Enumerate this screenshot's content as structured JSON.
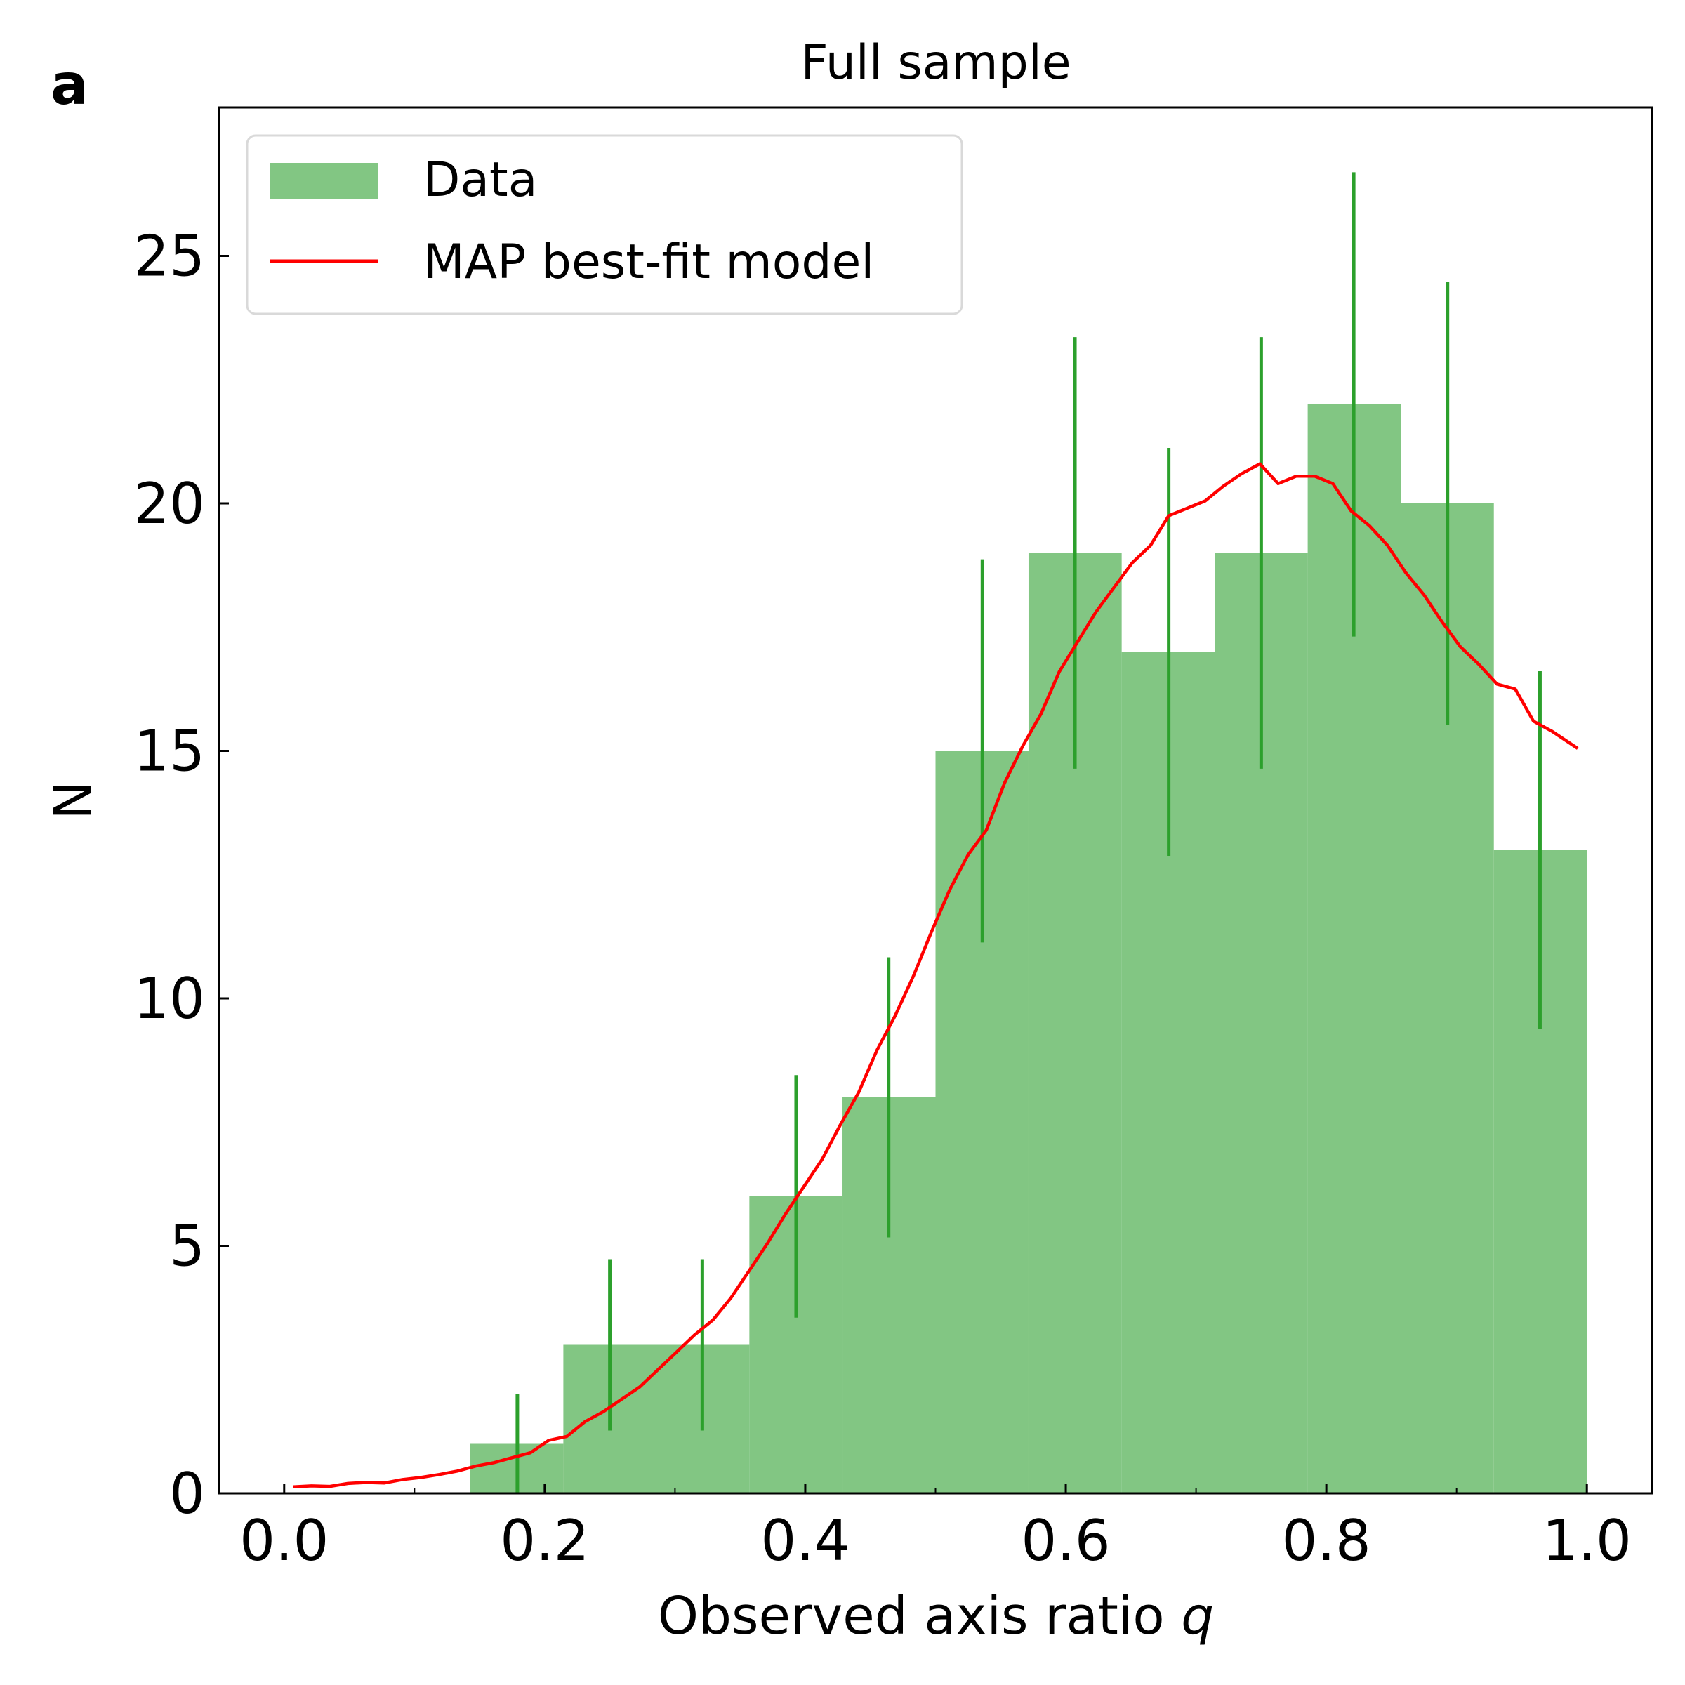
{
  "panel_label": "a",
  "chart_data": {
    "type": "bar",
    "title": "Full sample",
    "xlabel": "Observed axis ratio",
    "xlabel_var": "q",
    "ylabel": "N",
    "xlim": [
      -0.05,
      1.05
    ],
    "ylim": [
      0,
      28
    ],
    "xticks": [
      0.0,
      0.2,
      0.4,
      0.6,
      0.8,
      1.0
    ],
    "xtick_labels": [
      "0.0",
      "0.2",
      "0.4",
      "0.6",
      "0.8",
      "1.0"
    ],
    "yticks": [
      0,
      5,
      10,
      15,
      20,
      25
    ],
    "ytick_labels": [
      "0",
      "5",
      "10",
      "15",
      "20",
      "25"
    ],
    "grid": false,
    "legend_position": "top-left",
    "series": [
      {
        "name": "Data",
        "kind": "histogram",
        "color": "#82c683",
        "bin_edges": [
          0.1429,
          0.2143,
          0.2857,
          0.3571,
          0.4286,
          0.5,
          0.5714,
          0.6429,
          0.7143,
          0.7857,
          0.8571,
          0.9286,
          1.0
        ],
        "values": [
          1,
          3,
          3,
          6,
          8,
          15,
          19,
          17,
          19,
          22,
          20,
          13
        ],
        "error_color": "#2ca02c",
        "errors": [
          {
            "x": 0.179,
            "low": 0.0,
            "high": 2.0
          },
          {
            "x": 0.25,
            "low": 1.27,
            "high": 4.73
          },
          {
            "x": 0.321,
            "low": 1.27,
            "high": 4.73
          },
          {
            "x": 0.393,
            "low": 3.55,
            "high": 8.45
          },
          {
            "x": 0.464,
            "low": 5.17,
            "high": 10.83
          },
          {
            "x": 0.536,
            "low": 11.13,
            "high": 18.87
          },
          {
            "x": 0.607,
            "low": 14.64,
            "high": 23.36
          },
          {
            "x": 0.679,
            "low": 12.88,
            "high": 21.12
          },
          {
            "x": 0.75,
            "low": 14.64,
            "high": 23.36
          },
          {
            "x": 0.821,
            "low": 17.31,
            "high": 26.69
          },
          {
            "x": 0.893,
            "low": 15.53,
            "high": 24.47
          },
          {
            "x": 0.964,
            "low": 9.39,
            "high": 16.61
          }
        ]
      },
      {
        "name": "MAP best-fit model",
        "kind": "line",
        "color": "#ff0000",
        "x": [
          0.007,
          0.021,
          0.035,
          0.049,
          0.063,
          0.077,
          0.091,
          0.105,
          0.119,
          0.133,
          0.147,
          0.161,
          0.175,
          0.189,
          0.203,
          0.217,
          0.231,
          0.245,
          0.259,
          0.273,
          0.287,
          0.301,
          0.315,
          0.329,
          0.343,
          0.357,
          0.371,
          0.385,
          0.399,
          0.413,
          0.427,
          0.441,
          0.455,
          0.469,
          0.483,
          0.497,
          0.511,
          0.525,
          0.539,
          0.553,
          0.567,
          0.581,
          0.595,
          0.609,
          0.623,
          0.637,
          0.651,
          0.665,
          0.679,
          0.693,
          0.707,
          0.721,
          0.735,
          0.749,
          0.763,
          0.777,
          0.791,
          0.805,
          0.819,
          0.833,
          0.847,
          0.861,
          0.875,
          0.889,
          0.903,
          0.917,
          0.931,
          0.945,
          0.959,
          0.973,
          0.993
        ],
        "y": [
          0.13,
          0.15,
          0.14,
          0.2,
          0.22,
          0.21,
          0.28,
          0.32,
          0.38,
          0.45,
          0.55,
          0.62,
          0.72,
          0.82,
          1.07,
          1.15,
          1.45,
          1.65,
          1.9,
          2.15,
          2.5,
          2.85,
          3.2,
          3.5,
          3.95,
          4.5,
          5.05,
          5.65,
          6.2,
          6.75,
          7.45,
          8.1,
          8.95,
          9.65,
          10.45,
          11.35,
          12.2,
          12.9,
          13.4,
          14.35,
          15.1,
          15.75,
          16.6,
          17.2,
          17.8,
          18.3,
          18.8,
          19.15,
          19.75,
          19.9,
          20.05,
          20.35,
          20.6,
          20.8,
          20.4,
          20.55,
          20.55,
          20.4,
          19.85,
          19.55,
          19.15,
          18.6,
          18.15,
          17.6,
          17.1,
          16.75,
          16.35,
          16.25,
          15.6,
          15.4,
          15.05
        ]
      }
    ]
  }
}
